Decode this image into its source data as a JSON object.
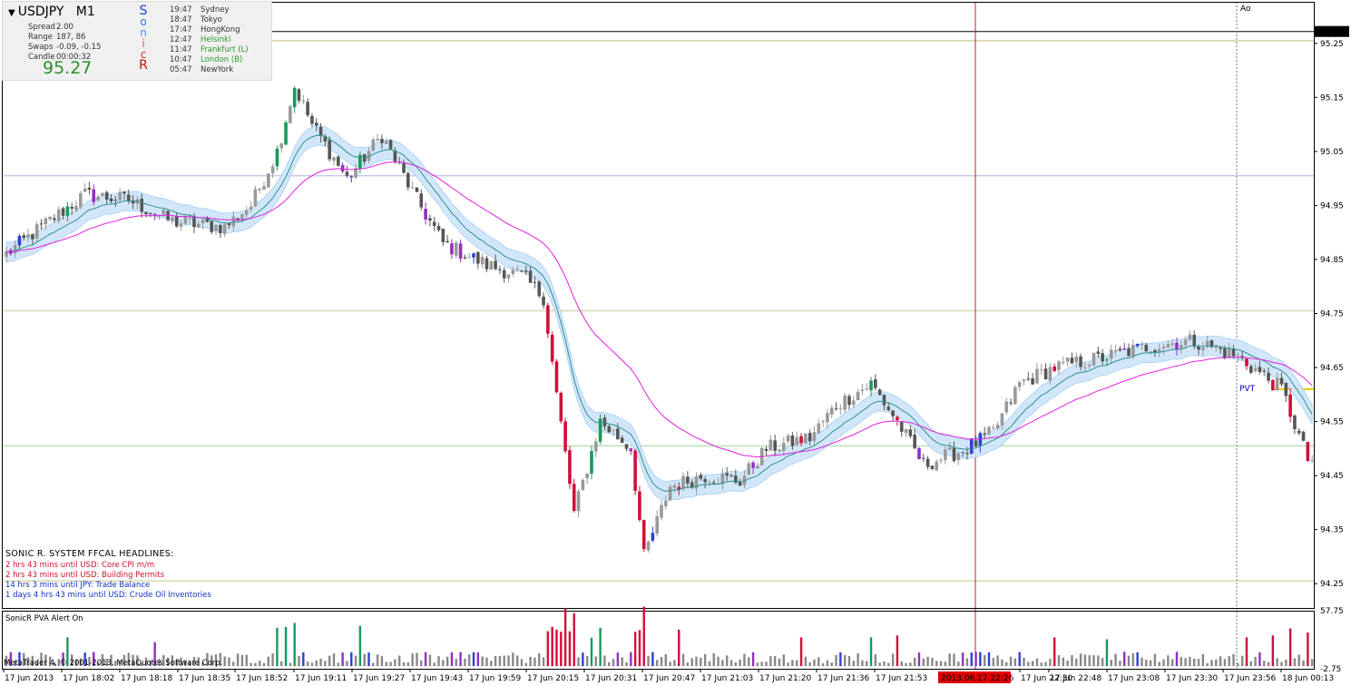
{
  "header": {
    "symbol": "USDJPY",
    "timeframe": "M1",
    "stats": [
      {
        "label": "Spread",
        "value": "2.00"
      },
      {
        "label": "Range",
        "value": "187, 86"
      },
      {
        "label": "Swaps",
        "value": "-0.09, -0.15"
      },
      {
        "label": "Candle",
        "value": "00:00:32"
      }
    ],
    "price": "95.27",
    "sonic_letters": [
      {
        "ch": "S",
        "color": "#1a3fd0"
      },
      {
        "ch": "o",
        "color": "#3a6ae0"
      },
      {
        "ch": "n",
        "color": "#5a8ae8"
      },
      {
        "ch": "i",
        "color": "#e05050"
      },
      {
        "ch": "c",
        "color": "#d03030"
      },
      {
        "ch": "R",
        "color": "#c01010"
      }
    ],
    "sessions": [
      {
        "time": "19:47",
        "city": "Sydney",
        "color": "#333333"
      },
      {
        "time": "18:47",
        "city": "Tokyo",
        "color": "#333333"
      },
      {
        "time": "17:47",
        "city": "HongKong",
        "color": "#333333"
      },
      {
        "time": "12:47",
        "city": "Helsinki",
        "color": "#2a9a2a"
      },
      {
        "time": "11:47",
        "city": "Frankfurt  (L)",
        "color": "#2a9a2a"
      },
      {
        "time": "10:47",
        "city": "London  (B)",
        "color": "#2a9a2a"
      },
      {
        "time": "05:47",
        "city": "NewYork",
        "color": "#333333"
      }
    ]
  },
  "headlines": {
    "title": "SONIC R. SYSTEM  FFCAL HEADLINES:",
    "items": [
      {
        "text": "2 hrs 43 mins until USD: Core CPI m/m",
        "color": "#d01030"
      },
      {
        "text": "2 hrs 43 mins until USD: Building Permits",
        "color": "#d01030"
      },
      {
        "text": "14 hrs 3 mins until JPY: Trade Balance",
        "color": "#1030c0"
      },
      {
        "text": "1 days 4 hrs 43 mins until USD: Crude Oil Inventories",
        "color": "#1030c0"
      }
    ]
  },
  "indicator_label": "SonicR PVA   Alert On",
  "copyright": "MetaTrader 4, © 2001-2013, MetaQuotes Software Corp.",
  "markers": {
    "ao": "Ao",
    "pvt": "PVT"
  },
  "colors": {
    "bull_normal": "#999999",
    "bear_normal": "#555555",
    "climax_bull": "#1a9a5a",
    "climax_bear": "#d0103a",
    "rising_bull": "#3040d0",
    "rising_bear": "#9030c0",
    "ema_band": "#cce4f8",
    "ema_line": "#2f8f8f",
    "ema_slow": "#e020e0",
    "vline": "#c02020",
    "pivot": "#e8d000"
  },
  "chart_data": {
    "type": "candlestick",
    "ylim": [
      94.205,
      95.295
    ],
    "y_ticks": [
      "95.25",
      "95.15",
      "95.05",
      "94.95",
      "94.85",
      "94.75",
      "94.65",
      "94.55",
      "94.45",
      "94.35",
      "94.25"
    ],
    "current_price": "95.27",
    "x_ticks": [
      "17 Jun 2013",
      "17 Jun 18:02",
      "17 Jun 18:18",
      "17 Jun 18:35",
      "17 Jun 18:52",
      "17 Jun 19:11",
      "17 Jun 19:27",
      "17 Jun 19:43",
      "17 Jun 19:59",
      "17 Jun 20:15",
      "17 Jun 20:31",
      "17 Jun 20:47",
      "17 Jun 21:03",
      "17 Jun 21:20",
      "17 Jun 21:36",
      "17 Jun 21:53",
      "17 Jun 22:30",
      "17 Jun 22:48",
      "17 Jun 23:08",
      "17 Jun 23:30",
      "17 Jun 23:56",
      "18 Jun 00:13"
    ],
    "crosshair_time_label": "2013.06.17 22:26",
    "horizontal_levels": [
      {
        "price": 95.255,
        "color": "#d8d0a8"
      },
      {
        "price": 95.005,
        "color": "#c8c8e8"
      },
      {
        "price": 94.755,
        "color": "#d8d8b0"
      },
      {
        "price": 94.505,
        "color": "#b8e0b8"
      },
      {
        "price": 94.255,
        "color": "#d8d8b0"
      }
    ],
    "pivot_price": 94.61,
    "anchors": [
      [
        0,
        94.86
      ],
      [
        8,
        94.91
      ],
      [
        18,
        94.97
      ],
      [
        28,
        94.96
      ],
      [
        38,
        94.92
      ],
      [
        50,
        94.91
      ],
      [
        56,
        94.95
      ],
      [
        62,
        95.05
      ],
      [
        66,
        95.17
      ],
      [
        70,
        95.1
      ],
      [
        78,
        95.0
      ],
      [
        86,
        95.08
      ],
      [
        94,
        94.96
      ],
      [
        100,
        94.88
      ],
      [
        110,
        94.84
      ],
      [
        118,
        94.82
      ],
      [
        123,
        94.78
      ],
      [
        126,
        94.6
      ],
      [
        130,
        94.38
      ],
      [
        136,
        94.55
      ],
      [
        143,
        94.5
      ],
      [
        146,
        94.3
      ],
      [
        152,
        94.43
      ],
      [
        160,
        94.45
      ],
      [
        168,
        94.44
      ],
      [
        174,
        94.5
      ],
      [
        184,
        94.52
      ],
      [
        190,
        94.58
      ],
      [
        198,
        94.62
      ],
      [
        204,
        94.55
      ],
      [
        210,
        94.47
      ],
      [
        220,
        94.5
      ],
      [
        226,
        94.53
      ],
      [
        232,
        94.62
      ],
      [
        240,
        94.65
      ],
      [
        252,
        94.67
      ],
      [
        262,
        94.69
      ],
      [
        272,
        94.7
      ],
      [
        282,
        94.67
      ],
      [
        292,
        94.61
      ],
      [
        298,
        94.48
      ]
    ],
    "indicator_ylim": [
      -2.75,
      57.75
    ],
    "indicator_ticks": [
      "57.75",
      "-2.75"
    ],
    "volume_spikes": [
      [
        14,
        30
      ],
      [
        34,
        25
      ],
      [
        62,
        40
      ],
      [
        66,
        45
      ],
      [
        81,
        42
      ],
      [
        126,
        38
      ],
      [
        128,
        60
      ],
      [
        130,
        55
      ],
      [
        146,
        62
      ],
      [
        154,
        38
      ],
      [
        182,
        30
      ],
      [
        198,
        30
      ],
      [
        204,
        32
      ],
      [
        240,
        30
      ],
      [
        252,
        28
      ],
      [
        284,
        30
      ],
      [
        290,
        32
      ],
      [
        298,
        35
      ]
    ]
  }
}
